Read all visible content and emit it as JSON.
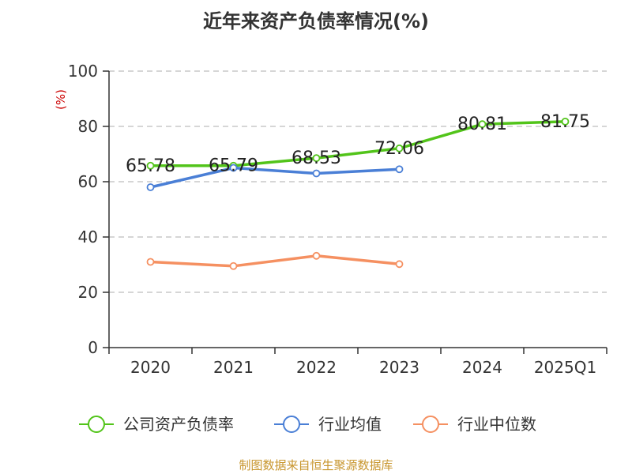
{
  "chart_data": {
    "type": "line",
    "title": "近年来资产负债率情况(%)",
    "ylabel": "(%)",
    "categories": [
      "2020",
      "2021",
      "2022",
      "2023",
      "2024",
      "2025Q1"
    ],
    "ylim": [
      0,
      100
    ],
    "yticks": [
      0,
      20,
      40,
      60,
      80,
      100
    ],
    "grid": true,
    "legend_position": "bottom",
    "series": [
      {
        "name": "公司资产负债率",
        "color": "#52c41a",
        "values": [
          65.78,
          65.79,
          68.53,
          72.06,
          80.81,
          81.75
        ],
        "labels": [
          "65.78",
          "65.79",
          "68.53",
          "72.06",
          "80.81",
          "81.75"
        ]
      },
      {
        "name": "行业均值",
        "color": "#4a7fd6",
        "values": [
          58.0,
          65.0,
          63.0,
          64.5,
          null,
          null
        ]
      },
      {
        "name": "行业中位数",
        "color": "#f59061",
        "values": [
          31.0,
          29.5,
          33.2,
          30.2,
          null,
          null
        ]
      }
    ]
  },
  "footer": {
    "source": "制图数据来自恒生聚源数据库"
  }
}
